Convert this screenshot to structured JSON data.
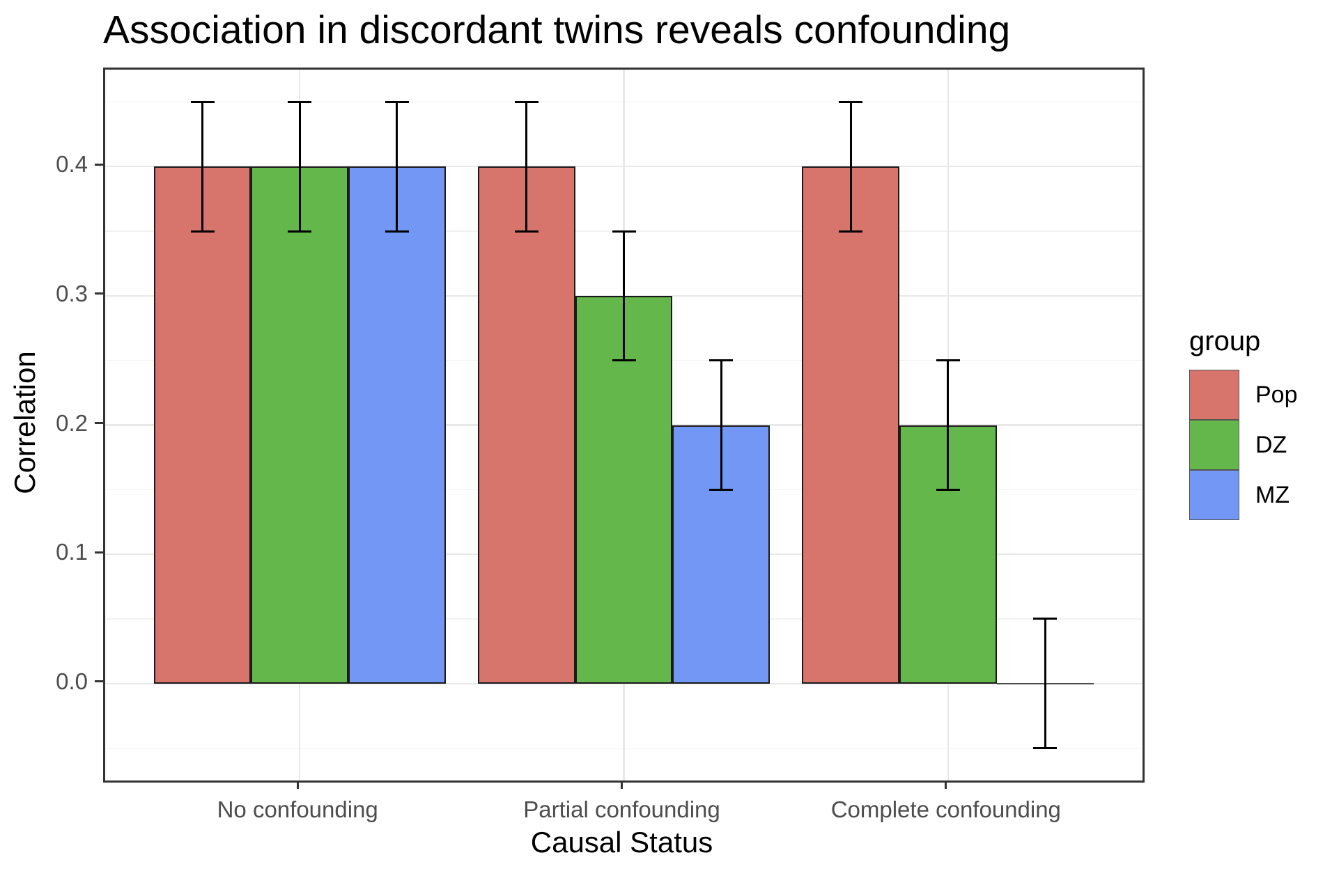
{
  "chart_data": {
    "type": "bar",
    "title": "Association in discordant twins reveals confounding",
    "xlabel": "Causal Status",
    "ylabel": "Correlation",
    "categories": [
      "No confounding",
      "Partial confounding",
      "Complete confounding"
    ],
    "series": [
      {
        "name": "Pop",
        "color": "#D7756C",
        "values": [
          0.4,
          0.4,
          0.4
        ],
        "error_low": [
          0.35,
          0.35,
          0.35
        ],
        "error_high": [
          0.45,
          0.45,
          0.45
        ]
      },
      {
        "name": "DZ",
        "color": "#64B84B",
        "values": [
          0.4,
          0.3,
          0.2
        ],
        "error_low": [
          0.35,
          0.25,
          0.15
        ],
        "error_high": [
          0.45,
          0.35,
          0.25
        ]
      },
      {
        "name": "MZ",
        "color": "#7397F5",
        "values": [
          0.4,
          0.2,
          0.0
        ],
        "error_low": [
          0.35,
          0.15,
          -0.05
        ],
        "error_high": [
          0.45,
          0.25,
          0.05
        ]
      }
    ],
    "ylim": [
      -0.075,
      0.475
    ],
    "yticks": [
      0.0,
      0.1,
      0.2,
      0.3,
      0.4
    ],
    "ytick_labels": [
      "0.0",
      "0.1",
      "0.2",
      "0.3",
      "0.4"
    ],
    "yminor": [
      -0.05,
      0.05,
      0.15,
      0.25,
      0.35,
      0.45
    ],
    "legend_title": "group",
    "legend_position": "right",
    "grid": true,
    "bar_group_width": 0.9
  },
  "colors": {
    "grid_major": "#E8E8E8",
    "grid_minor": "#F2F2F2",
    "panel_border": "#333333",
    "bar_outline": "#1A1A1A",
    "error_bar": "#000000",
    "tick_mark": "#333333",
    "tick_label": "#4D4D4D",
    "axis_title": "#000000",
    "title": "#000000"
  }
}
